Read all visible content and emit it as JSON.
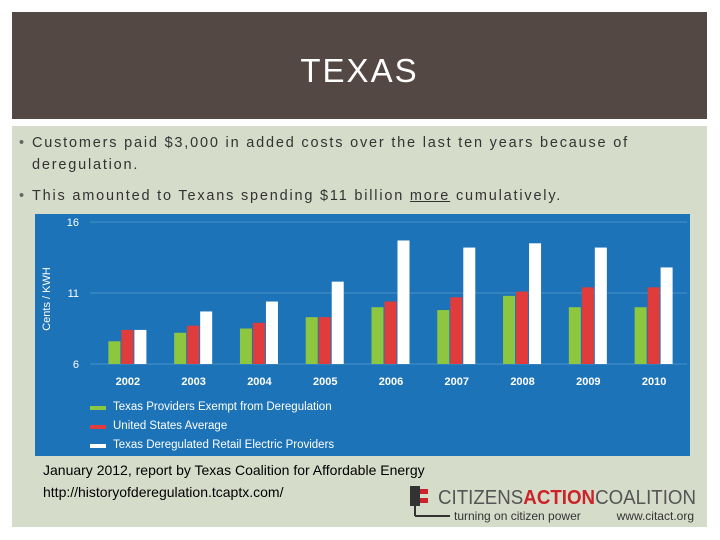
{
  "slide": {
    "title": "TEXAS",
    "bullets": [
      {
        "text": "Customers paid $3,000 in added costs over the last ten years because of deregulation."
      },
      {
        "before": "This amounted to Texans spending $11 billion ",
        "emph": "more",
        "after": " cumulatively."
      }
    ],
    "source_line1": "January 2012, report by Texas Coalition for Affordable Energy",
    "source_line2": "http://historyofderegulation.tcaptx.com/"
  },
  "logo": {
    "name_part1": "CITIZENS",
    "name_part2": "ACTION",
    "name_part3": "COALITION",
    "tagline": "turning on citizen power",
    "url": "www.citact.org"
  },
  "colors": {
    "title_bar": "#544844",
    "content_bg": "#d6dcca",
    "chart_bg": "#1c73b8",
    "green": "#8dc63f",
    "red": "#e03c3c",
    "white": "#ffffff",
    "logo_red": "#cc2229"
  },
  "chart_data": {
    "type": "bar",
    "ylabel": "Cents / KWH",
    "ylim": [
      6,
      16
    ],
    "yticks": [
      6,
      11,
      16
    ],
    "categories": [
      "2002",
      "2003",
      "2004",
      "2005",
      "2006",
      "2007",
      "2008",
      "2009",
      "2010"
    ],
    "series": [
      {
        "name": "Texas Providers Exempt from Deregulation",
        "color": "#8dc63f",
        "values": [
          7.6,
          8.2,
          8.5,
          9.3,
          10.0,
          9.8,
          10.8,
          10.0,
          10.0
        ]
      },
      {
        "name": "United States Average",
        "color": "#e03c3c",
        "values": [
          8.4,
          8.7,
          8.9,
          9.3,
          10.4,
          10.7,
          11.1,
          11.4,
          11.4
        ]
      },
      {
        "name": "Texas Deregulated Retail Electric Providers",
        "color": "#ffffff",
        "values": [
          8.4,
          9.7,
          10.4,
          11.8,
          14.7,
          14.2,
          14.5,
          14.2,
          12.8
        ]
      }
    ],
    "legend_position": "bottom-left",
    "grid": true
  }
}
